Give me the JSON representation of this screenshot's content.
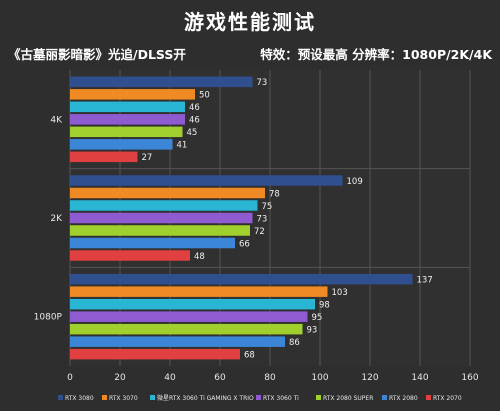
{
  "chart_data": {
    "type": "bar",
    "orientation": "horizontal",
    "title": "游戏性能测试",
    "subtitle_left": "《古墓丽影暗影》光追/DLSS开",
    "subtitle_right": "特效：预设最高   分辨率：1080P/2K/4K",
    "categories": [
      "4K",
      "2K",
      "1080P"
    ],
    "series": [
      {
        "name": "RTX 3080",
        "color": "#2f4f8f",
        "values": [
          73,
          109,
          137
        ]
      },
      {
        "name": "RTX 3070",
        "color": "#f08a24",
        "values": [
          50,
          78,
          103
        ]
      },
      {
        "name": "微星RTX 3060 Ti GAMING X TRIO",
        "color": "#29b6d4",
        "values": [
          46,
          75,
          98
        ]
      },
      {
        "name": "RTX 3060 Ti",
        "color": "#8e5bd1",
        "values": [
          46,
          73,
          95
        ]
      },
      {
        "name": "RTX 2080 SUPER",
        "color": "#a0d02e",
        "values": [
          45,
          72,
          93
        ]
      },
      {
        "name": "RTX 2080",
        "color": "#3c86d8",
        "values": [
          41,
          66,
          86
        ]
      },
      {
        "name": "RTX 2070",
        "color": "#e0403f",
        "values": [
          27,
          48,
          68
        ]
      }
    ],
    "xlim": [
      0,
      160
    ],
    "x_ticks": [
      "0",
      "20",
      "40",
      "60",
      "80",
      "100",
      "120",
      "140",
      "160"
    ],
    "grid": true,
    "legend_position": "bottom"
  }
}
